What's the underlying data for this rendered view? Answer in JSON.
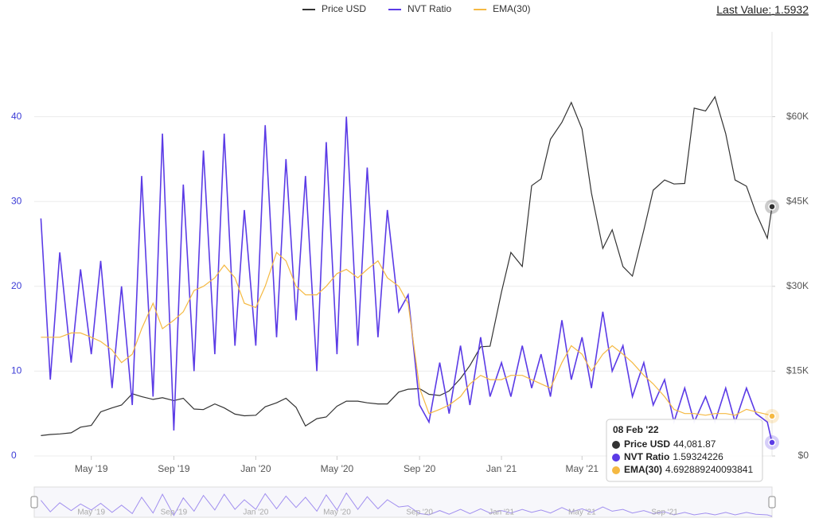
{
  "chart_data": {
    "type": "line",
    "last_value_label": "Last Value:",
    "last_value": 1.5932,
    "x": [
      "2019-02-15",
      "2019-03-01",
      "2019-03-15",
      "2019-04-01",
      "2019-04-15",
      "2019-05-01",
      "2019-05-15",
      "2019-06-01",
      "2019-06-15",
      "2019-07-01",
      "2019-07-15",
      "2019-08-01",
      "2019-08-15",
      "2019-09-01",
      "2019-09-15",
      "2019-10-01",
      "2019-10-15",
      "2019-11-01",
      "2019-11-15",
      "2019-12-01",
      "2019-12-15",
      "2020-01-01",
      "2020-01-15",
      "2020-02-01",
      "2020-02-15",
      "2020-03-01",
      "2020-03-15",
      "2020-04-01",
      "2020-04-15",
      "2020-05-01",
      "2020-05-15",
      "2020-06-01",
      "2020-06-15",
      "2020-07-01",
      "2020-07-15",
      "2020-08-01",
      "2020-08-15",
      "2020-09-01",
      "2020-09-15",
      "2020-10-01",
      "2020-10-15",
      "2020-11-01",
      "2020-11-15",
      "2020-12-01",
      "2020-12-15",
      "2021-01-01",
      "2021-01-15",
      "2021-02-01",
      "2021-02-15",
      "2021-03-01",
      "2021-03-15",
      "2021-04-01",
      "2021-04-15",
      "2021-05-01",
      "2021-05-15",
      "2021-06-01",
      "2021-06-15",
      "2021-07-01",
      "2021-07-15",
      "2021-08-01",
      "2021-08-15",
      "2021-09-01",
      "2021-09-15",
      "2021-10-01",
      "2021-10-15",
      "2021-11-01",
      "2021-11-15",
      "2021-12-01",
      "2021-12-15",
      "2022-01-01",
      "2022-01-15",
      "2022-02-01",
      "2022-02-08"
    ],
    "series": [
      {
        "name": "Price USD",
        "color": "#333333",
        "axis": "y2",
        "values": [
          3600,
          3800,
          3900,
          4100,
          5100,
          5400,
          7800,
          8500,
          9000,
          11000,
          10500,
          10000,
          10300,
          9800,
          10200,
          8300,
          8200,
          9200,
          8500,
          7400,
          7100,
          7200,
          8700,
          9400,
          10200,
          8600,
          5300,
          6600,
          6900,
          8800,
          9700,
          9700,
          9400,
          9200,
          9200,
          11300,
          11800,
          11900,
          10900,
          10700,
          11500,
          13700,
          16000,
          19300,
          19400,
          29000,
          36000,
          33500,
          47800,
          49000,
          56000,
          59000,
          62500,
          57800,
          46500,
          36700,
          40000,
          33500,
          31800,
          39900,
          47000,
          48800,
          48100,
          48200,
          61500,
          61000,
          63500,
          57000,
          48800,
          47700,
          43000,
          38500,
          44081.87
        ]
      },
      {
        "name": "NVT Ratio",
        "color": "#5b3be6",
        "values": [
          28,
          9,
          24,
          11,
          22,
          12,
          23,
          8,
          20,
          6,
          33,
          7,
          38,
          3,
          32,
          10,
          36,
          12,
          38,
          13,
          29,
          13,
          39,
          14,
          35,
          16,
          33,
          10,
          37,
          12,
          40,
          13,
          34,
          14,
          29,
          17,
          19,
          6,
          4,
          11,
          5,
          13,
          6,
          14,
          7,
          11,
          7,
          13,
          8,
          12,
          7,
          16,
          9,
          14,
          8,
          17,
          10,
          13,
          7,
          11,
          6,
          9,
          4,
          8,
          4,
          7,
          4,
          8,
          4,
          8,
          5,
          4,
          1.59324226
        ]
      },
      {
        "name": "EMA(30)",
        "color": "#f5b942",
        "values": [
          14,
          14,
          14,
          14.5,
          14.5,
          14,
          13.5,
          12.5,
          11,
          12,
          15,
          18,
          15,
          16,
          17,
          19.5,
          20,
          21,
          22.5,
          21,
          18,
          17.5,
          20,
          24,
          23,
          20,
          19,
          19,
          20,
          21.5,
          22,
          21,
          22,
          23,
          21,
          20,
          18,
          8,
          5,
          5.5,
          6,
          7,
          8.5,
          9.5,
          9,
          9,
          9.5,
          9.5,
          9,
          8.5,
          8,
          11,
          13,
          12,
          10,
          12,
          13,
          12,
          11,
          9.5,
          8.5,
          7,
          5.5,
          5,
          5,
          4.8,
          5,
          5,
          4.8,
          5.5,
          5.2,
          4.9,
          4.692889240093841
        ]
      }
    ],
    "xlim": [
      "2019-02-05",
      "2022-02-08"
    ],
    "xticks": [
      {
        "value": "2019-05-01",
        "label": "May '19"
      },
      {
        "value": "2019-09-01",
        "label": "Sep '19"
      },
      {
        "value": "2020-01-01",
        "label": "Jan '20"
      },
      {
        "value": "2020-05-01",
        "label": "May '20"
      },
      {
        "value": "2020-09-01",
        "label": "Sep '20"
      },
      {
        "value": "2021-01-01",
        "label": "Jan '21"
      },
      {
        "value": "2021-05-01",
        "label": "May '21"
      },
      {
        "value": "2021-09-01",
        "label": "Sep '21"
      }
    ],
    "ylim": [
      0,
      50
    ],
    "yticks": [
      0,
      10,
      20,
      30,
      40
    ],
    "y2lim": [
      0,
      75000
    ],
    "y2ticks": [
      {
        "value": 0,
        "label": "$0"
      },
      {
        "value": 15000,
        "label": "$15K"
      },
      {
        "value": 30000,
        "label": "$30K"
      },
      {
        "value": 45000,
        "label": "$45K"
      },
      {
        "value": 60000,
        "label": "$60K"
      }
    ],
    "grid": true,
    "legend": "top",
    "tooltip": {
      "title": "08 Feb '22",
      "values": [
        {
          "value": 44081.87,
          "label": "44,081.87"
        },
        1.59324226,
        4.692889240093841
      ]
    }
  }
}
